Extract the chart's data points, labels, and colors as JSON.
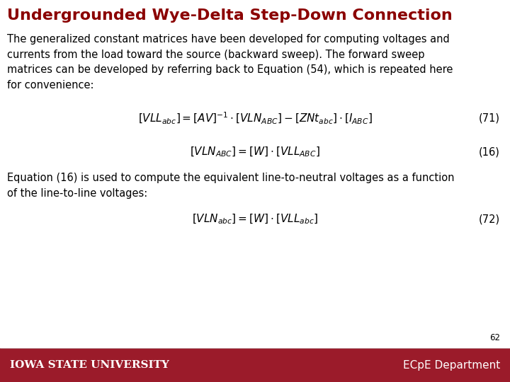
{
  "title": "Undergrounded Wye-Delta Step-Down Connection",
  "title_color": "#8B0000",
  "title_fontsize": 16,
  "body_text": "The generalized constant matrices have been developed for computing voltages and\ncurrents from the load toward the source (backward sweep). The forward sweep\nmatrices can be developed by referring back to Equation (54), which is repeated here\nfor convenience:",
  "body_fontsize": 10.5,
  "eq71_label": "(71)",
  "eq16_label": "(16)",
  "eq72_label": "(72)",
  "equation71": "$[VLL_{abc}] = [AV]^{-1} \\cdot [VLN_{ABC}] - [ZNt_{abc}] \\cdot [I_{ABC}]$",
  "equation16": "$[VLN_{ABC}] = [W] \\cdot [VLL_{ABC}]$",
  "middle_text": "Equation (16) is used to compute the equivalent line-to-neutral voltages as a function\nof the line-to-line voltages:",
  "equation72": "$[VLN_{abc}] = [W] \\cdot [VLL_{abc}]$",
  "footer_bg": "#9B1B2A",
  "footer_text_left": "IOWA STATE UNIVERSITY",
  "footer_text_right": "ECpE Department",
  "footer_fontsize": 11,
  "page_number": "62",
  "bg_color": "#FFFFFF"
}
